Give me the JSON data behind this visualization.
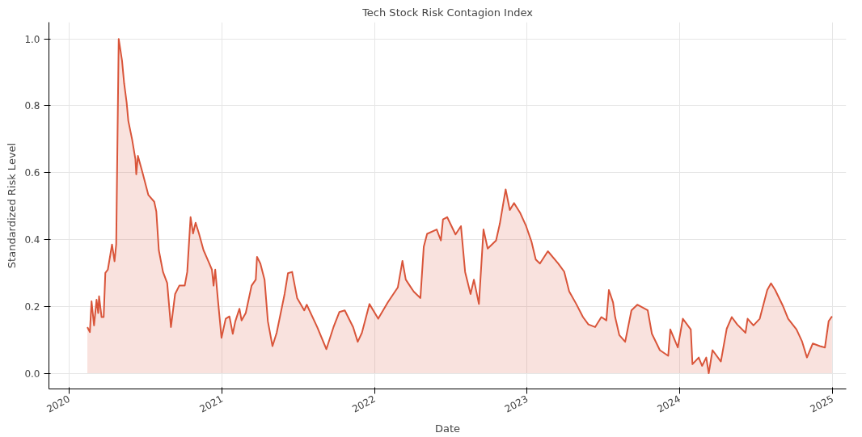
{
  "chart_data": {
    "type": "area",
    "title": "Tech Stock Risk Contagion Index",
    "xlabel": "Date",
    "ylabel": "Standardized Risk Level",
    "xlim": [
      "2019-11-14",
      "2025-02-03"
    ],
    "ylim": [
      -0.047,
      1.05
    ],
    "xticks": [
      "2020",
      "2021",
      "2022",
      "2023",
      "2024",
      "2025"
    ],
    "yticks": [
      {
        "value": 0,
        "label": "0.0"
      },
      {
        "value": 0.2,
        "label": "0.2"
      },
      {
        "value": 0.4,
        "label": "0.4"
      },
      {
        "value": 0.6,
        "label": "0.6"
      },
      {
        "value": 0.8,
        "label": "0.8"
      },
      {
        "value": 1.0,
        "label": "1.0"
      }
    ],
    "grid": true,
    "series": [
      {
        "color": "#d9553a",
        "x": [
          "2020-02-14",
          "2020-02-20",
          "2020-02-24",
          "2020-03-01",
          "2020-03-07",
          "2020-03-11",
          "2020-03-13",
          "2020-03-19",
          "2020-03-24",
          "2020-03-28",
          "2020-04-03",
          "2020-04-13",
          "2020-04-19",
          "2020-04-23",
          "2020-04-29",
          "2020-05-07",
          "2020-05-12",
          "2020-05-18",
          "2020-05-22",
          "2020-05-31",
          "2020-06-08",
          "2020-06-10",
          "2020-06-14",
          "2020-06-25",
          "2020-07-09",
          "2020-07-23",
          "2020-07-28",
          "2020-08-03",
          "2020-08-13",
          "2020-08-23",
          "2020-09-01",
          "2020-09-11",
          "2020-09-21",
          "2020-10-04",
          "2020-10-10",
          "2020-10-18",
          "2020-10-24",
          "2020-10-30",
          "2020-11-07",
          "2020-11-18",
          "2020-12-02",
          "2020-12-08",
          "2020-12-12",
          "2020-12-16",
          "2020-12-22",
          "2020-12-31",
          "2021-01-10",
          "2021-01-19",
          "2021-01-27",
          "2021-02-02",
          "2021-02-12",
          "2021-02-17",
          "2021-02-27",
          "2021-03-13",
          "2021-03-23",
          "2021-03-26",
          "2021-04-03",
          "2021-04-13",
          "2021-04-21",
          "2021-05-02",
          "2021-05-12",
          "2021-05-31",
          "2021-06-08",
          "2021-06-18",
          "2021-06-30",
          "2021-07-17",
          "2021-07-23",
          "2021-08-17",
          "2021-09-08",
          "2021-09-25",
          "2021-10-09",
          "2021-10-22",
          "2021-11-11",
          "2021-11-22",
          "2021-12-02",
          "2021-12-20",
          "2022-01-10",
          "2022-02-02",
          "2022-02-26",
          "2022-03-09",
          "2022-03-17",
          "2022-04-05",
          "2022-04-21",
          "2022-04-29",
          "2022-05-07",
          "2022-05-30",
          "2022-06-09",
          "2022-06-14",
          "2022-06-24",
          "2022-07-14",
          "2022-07-27",
          "2022-08-06",
          "2022-08-19",
          "2022-08-27",
          "2022-09-08",
          "2022-09-19",
          "2022-09-29",
          "2022-10-19",
          "2022-10-28",
          "2022-11-11",
          "2022-11-21",
          "2022-12-01",
          "2022-12-16",
          "2022-12-30",
          "2023-01-12",
          "2023-01-22",
          "2023-02-01",
          "2023-02-20",
          "2023-03-17",
          "2023-03-31",
          "2023-04-12",
          "2023-04-29",
          "2023-05-15",
          "2023-05-28",
          "2023-06-13",
          "2023-06-28",
          "2023-07-10",
          "2023-07-16",
          "2023-07-26",
          "2023-07-31",
          "2023-08-10",
          "2023-08-24",
          "2023-09-08",
          "2023-09-22",
          "2023-10-17",
          "2023-10-27",
          "2023-11-15",
          "2023-12-05",
          "2023-12-10",
          "2023-12-28",
          "2024-01-09",
          "2024-01-28",
          "2024-02-01",
          "2024-02-16",
          "2024-02-24",
          "2024-03-05",
          "2024-03-11",
          "2024-03-20",
          "2024-04-09",
          "2024-04-23",
          "2024-05-05",
          "2024-05-18",
          "2024-06-07",
          "2024-06-12",
          "2024-06-26",
          "2024-07-11",
          "2024-07-29",
          "2024-08-07",
          "2024-08-17",
          "2024-09-05",
          "2024-09-17",
          "2024-10-07",
          "2024-10-20",
          "2024-11-01",
          "2024-11-15",
          "2024-12-02",
          "2024-12-14",
          "2024-12-23",
          "2024-12-31"
        ],
        "values": [
          0.138,
          0.123,
          0.215,
          0.143,
          0.22,
          0.18,
          0.23,
          0.168,
          0.168,
          0.3,
          0.31,
          0.385,
          0.335,
          0.385,
          1.0,
          0.935,
          0.867,
          0.81,
          0.755,
          0.7,
          0.64,
          0.595,
          0.65,
          0.6,
          0.533,
          0.513,
          0.484,
          0.368,
          0.303,
          0.27,
          0.138,
          0.237,
          0.262,
          0.262,
          0.303,
          0.467,
          0.418,
          0.45,
          0.418,
          0.368,
          0.328,
          0.31,
          0.262,
          0.31,
          0.225,
          0.106,
          0.163,
          0.17,
          0.118,
          0.155,
          0.193,
          0.158,
          0.18,
          0.262,
          0.28,
          0.348,
          0.328,
          0.28,
          0.155,
          0.081,
          0.121,
          0.237,
          0.299,
          0.303,
          0.225,
          0.188,
          0.205,
          0.138,
          0.072,
          0.138,
          0.183,
          0.188,
          0.138,
          0.094,
          0.121,
          0.207,
          0.163,
          0.212,
          0.257,
          0.336,
          0.28,
          0.244,
          0.225,
          0.378,
          0.417,
          0.43,
          0.397,
          0.46,
          0.467,
          0.415,
          0.44,
          0.303,
          0.237,
          0.28,
          0.207,
          0.43,
          0.373,
          0.397,
          0.447,
          0.55,
          0.488,
          0.509,
          0.479,
          0.44,
          0.393,
          0.34,
          0.328,
          0.365,
          0.328,
          0.304,
          0.245,
          0.207,
          0.168,
          0.146,
          0.138,
          0.168,
          0.158,
          0.249,
          0.212,
          0.168,
          0.114,
          0.094,
          0.188,
          0.205,
          0.188,
          0.118,
          0.069,
          0.052,
          0.131,
          0.077,
          0.163,
          0.131,
          0.027,
          0.047,
          0.022,
          0.047,
          0.0,
          0.069,
          0.035,
          0.133,
          0.168,
          0.146,
          0.121,
          0.163,
          0.143,
          0.163,
          0.249,
          0.269,
          0.249,
          0.2,
          0.163,
          0.131,
          0.096,
          0.047,
          0.089,
          0.081,
          0.077,
          0.156,
          0.17
        ]
      }
    ]
  }
}
